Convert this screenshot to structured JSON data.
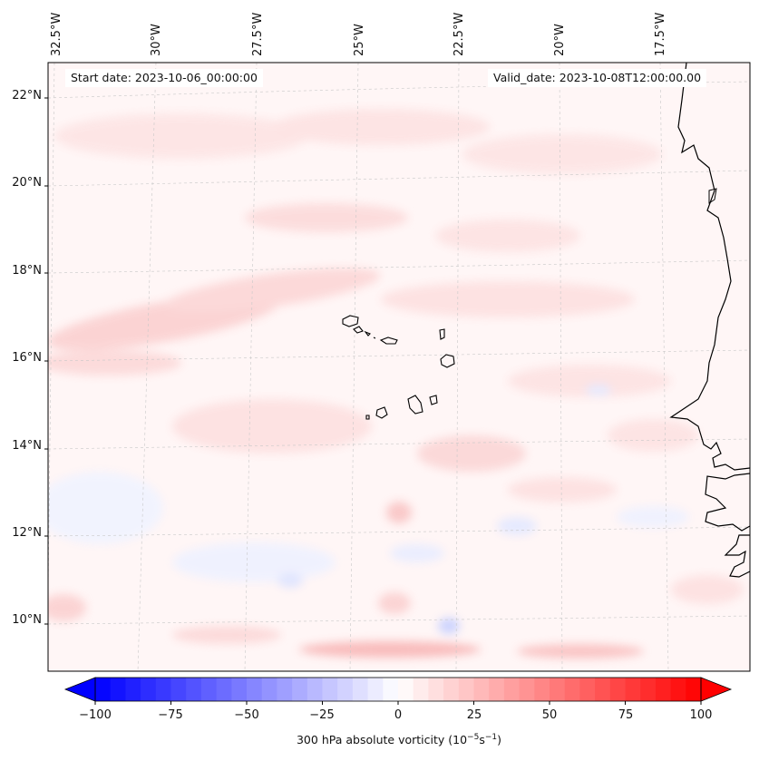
{
  "map": {
    "start_date": "Start date: 2023-10-06_00:00:00",
    "valid_date": "Valid_date: 2023-10-08T12:00:00.00",
    "lon_labels": [
      "32.5°W",
      "30°W",
      "27.5°W",
      "25°W",
      "22.5°W",
      "20°W",
      "17.5°W"
    ],
    "lat_labels": [
      "22°N",
      "20°N",
      "18°N",
      "16°N",
      "14°N",
      "12°N",
      "10°N"
    ],
    "field": "300 hPa absolute vorticity",
    "region": "Cabo Verde islands and West African coast"
  },
  "colorbar": {
    "ticks": [
      "−100",
      "−75",
      "−50",
      "−25",
      "0",
      "25",
      "50",
      "75",
      "100"
    ],
    "min": -100,
    "max": 100,
    "label_text": "300 hPa absolute vorticity (10",
    "label_exp1": "−5",
    "label_mid": "s",
    "label_exp2": "−1",
    "label_end": ")",
    "colors": {
      "low": "#0000ff",
      "mid": "#ffffff",
      "high": "#ff0000"
    }
  }
}
